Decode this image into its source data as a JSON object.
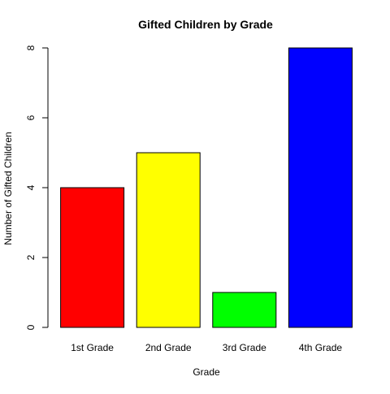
{
  "chart_data": {
    "type": "bar",
    "title": "Gifted Children by Grade",
    "xlabel": "Grade",
    "ylabel": "Number of Gifted Children",
    "categories": [
      "1st Grade",
      "2nd Grade",
      "3rd Grade",
      "4th Grade"
    ],
    "values": [
      4,
      5,
      1,
      8
    ],
    "colors": [
      "#ff0000",
      "#ffff00",
      "#00ff00",
      "#0000ff"
    ],
    "ylim": [
      0,
      8
    ],
    "yticks": [
      0,
      2,
      4,
      6,
      8
    ],
    "grid": false,
    "legend": "none"
  }
}
